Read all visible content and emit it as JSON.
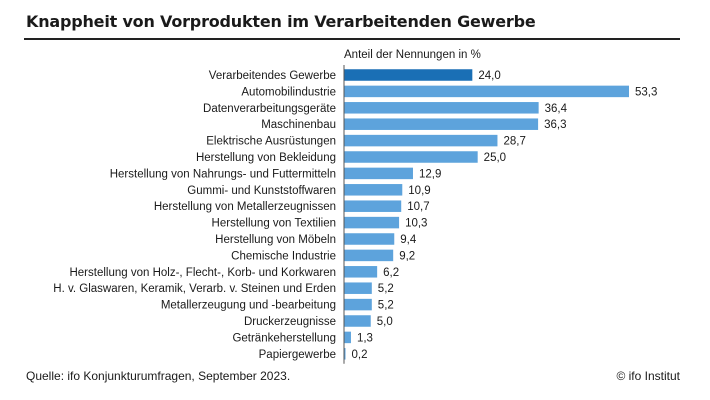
{
  "title": "Knappheit von Vorprodukten im Verarbeitenden Gewerbe",
  "source": "Quelle: ifo Konjunkturumfragen, September 2023.",
  "copyright": "© ifo Institut",
  "colors": {
    "highlight": "#1a6fb5",
    "bar": "#5da3dc",
    "axis": "#555555",
    "text": "#1a1a1a"
  },
  "chart_data": {
    "type": "bar",
    "orientation": "horizontal",
    "title": "Knappheit von Vorprodukten im Verarbeitenden Gewerbe",
    "value_axis_label": "Anteil der Nennungen in %",
    "xlim": [
      0,
      55
    ],
    "grid": false,
    "categories": [
      "Verarbeitendes Gewerbe",
      "Automobilindustrie",
      "Datenverarbeitungsgeräte",
      "Maschinenbau",
      "Elektrische Ausrüstungen",
      "Herstellung von Bekleidung",
      "Herstellung von Nahrungs- und Futtermitteln",
      "Gummi- und Kunststoffwaren",
      "Herstellung von Metallerzeugnissen",
      "Herstellung von Textilien",
      "Herstellung von Möbeln",
      "Chemische Industrie",
      "Herstellung von Holz-, Flecht-, Korb- und Korkwaren",
      "H. v. Glaswaren, Keramik, Verarb. v. Steinen und Erden",
      "Metallerzeugung und -bearbeitung",
      "Druckerzeugnisse",
      "Getränkeherstellung",
      "Papiergewerbe"
    ],
    "values": [
      24.0,
      53.3,
      36.4,
      36.3,
      28.7,
      25.0,
      12.9,
      10.9,
      10.7,
      10.3,
      9.4,
      9.2,
      6.2,
      5.2,
      5.2,
      5.0,
      1.3,
      0.2
    ],
    "value_labels": [
      "24,0",
      "53,3",
      "36,4",
      "36,3",
      "28,7",
      "25,0",
      "12,9",
      "10,9",
      "10,7",
      "10,3",
      "9,4",
      "9,2",
      "6,2",
      "5,2",
      "5,2",
      "5,0",
      "1,3",
      "0,2"
    ],
    "highlight_index": 0
  }
}
